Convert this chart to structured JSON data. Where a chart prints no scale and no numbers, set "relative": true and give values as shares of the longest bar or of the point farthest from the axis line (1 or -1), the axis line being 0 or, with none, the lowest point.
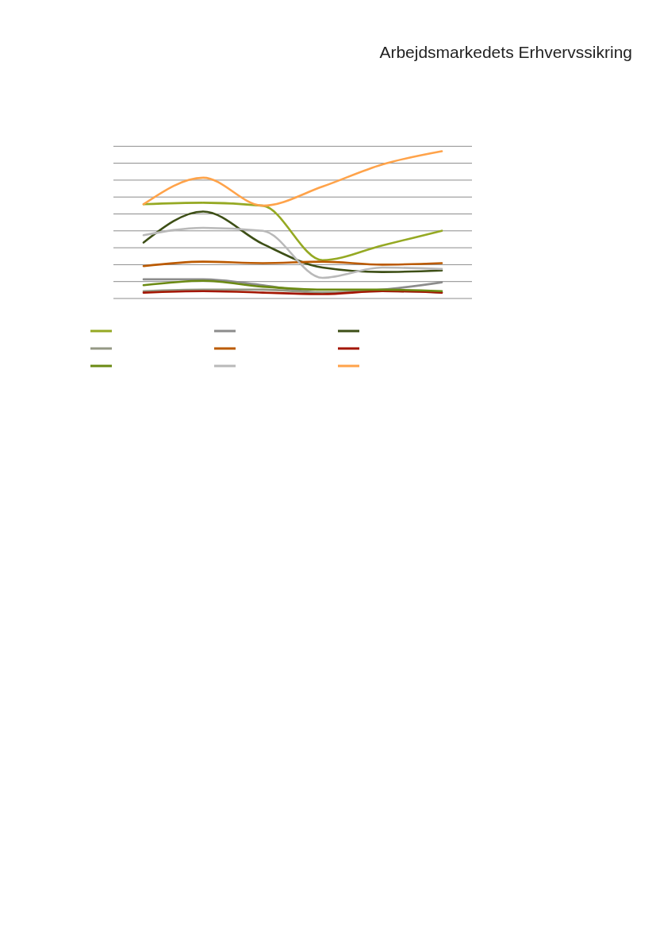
{
  "chart_data": {
    "type": "line",
    "title": "Arbejdsmarkedets Erhvervssikring",
    "relative": true,
    "grid": "y",
    "categories": [
      null,
      null,
      null,
      null,
      null,
      null
    ],
    "series": [
      {
        "color": "#95a923",
        "values": [
          0.64,
          0.65,
          0.63,
          0.26,
          0.36,
          0.46
        ]
      },
      {
        "color": "#8c8c8c",
        "values": [
          0.13,
          0.13,
          0.09,
          0.04,
          0.06,
          0.11
        ]
      },
      {
        "color": "#3d4f16",
        "values": [
          0.38,
          0.59,
          0.37,
          0.21,
          0.18,
          0.19
        ]
      },
      {
        "color": "#949884",
        "values": [
          0.05,
          0.06,
          0.06,
          0.04,
          0.05,
          0.04
        ]
      },
      {
        "color": "#bb5a00",
        "values": [
          0.22,
          0.25,
          0.24,
          0.25,
          0.23,
          0.24
        ]
      },
      {
        "color": "#a31500",
        "values": [
          0.04,
          0.05,
          0.04,
          0.03,
          0.05,
          0.04
        ]
      },
      {
        "color": "#6b8a13",
        "values": [
          0.09,
          0.12,
          0.08,
          0.06,
          0.06,
          0.05
        ]
      },
      {
        "color": "#b9b9b9",
        "values": [
          0.43,
          0.48,
          0.46,
          0.14,
          0.21,
          0.2
        ]
      },
      {
        "color": "#ffa34a",
        "values": [
          0.64,
          0.82,
          0.63,
          0.76,
          0.91,
          1
        ]
      }
    ]
  }
}
